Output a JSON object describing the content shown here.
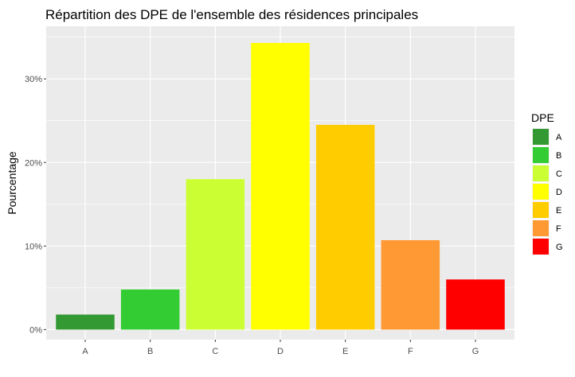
{
  "chart_data": {
    "type": "bar",
    "title": "Répartition des DPE de l'ensemble des résidences principales",
    "xlabel": "",
    "ylabel": "Pourcentage",
    "categories": [
      "A",
      "B",
      "C",
      "D",
      "E",
      "F",
      "G"
    ],
    "values": [
      1.8,
      4.8,
      18.0,
      34.3,
      24.5,
      10.7,
      6.0
    ],
    "ylim": [
      -1.2,
      36.3
    ],
    "y_ticks": [
      0,
      10,
      20,
      30
    ],
    "y_tick_labels": [
      "0%",
      "10%",
      "20%",
      "30%"
    ],
    "grid": true,
    "legend": {
      "title": "DPE",
      "position": "right",
      "entries": [
        "A",
        "B",
        "C",
        "D",
        "E",
        "F",
        "G"
      ]
    },
    "colors": [
      "#339933",
      "#33cc33",
      "#ccff33",
      "#ffff00",
      "#ffcc00",
      "#ff9933",
      "#ff0000"
    ],
    "panel_background": "#ebebeb"
  }
}
